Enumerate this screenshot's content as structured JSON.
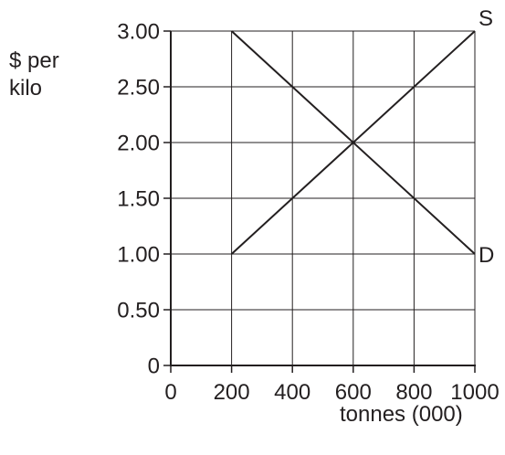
{
  "chart_data": {
    "type": "line",
    "xlabel": "tonnes (000)",
    "ylabel_lines": [
      "$ per",
      "kilo"
    ],
    "xlim": [
      0,
      1000
    ],
    "ylim": [
      0,
      3.0
    ],
    "x_ticks": [
      0,
      200,
      400,
      600,
      800,
      1000
    ],
    "x_tick_labels": [
      "0",
      "200",
      "400",
      "600",
      "800",
      "1000"
    ],
    "y_ticks": [
      0,
      0.5,
      1.0,
      1.5,
      2.0,
      2.5,
      3.0
    ],
    "y_tick_labels": [
      "0",
      "0.50",
      "1.00",
      "1.50",
      "2.00",
      "2.50",
      "3.00"
    ],
    "grid": true,
    "series": [
      {
        "name": "S",
        "x": [
          200,
          1000
        ],
        "y": [
          1.0,
          3.0
        ],
        "color": "#231f20"
      },
      {
        "name": "D",
        "x": [
          200,
          1000
        ],
        "y": [
          3.0,
          1.0
        ],
        "color": "#231f20"
      }
    ]
  }
}
